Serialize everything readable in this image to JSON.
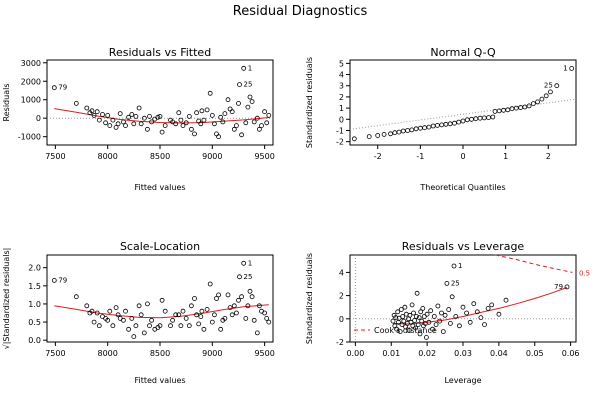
{
  "figure": {
    "title": "Residual Diagnostics"
  },
  "colors": {
    "points": "#000000",
    "smoother": "#e41a1c",
    "reference": "#999999",
    "cooks": "#e41a1c"
  },
  "chart_data": [
    {
      "type": "scatter",
      "title": "Residuals vs Fitted",
      "xlabel": "Fitted values",
      "ylabel": "Residuals",
      "xlim": [
        7420,
        9580
      ],
      "ylim": [
        -1450,
        3150
      ],
      "xticks": [
        7500,
        8000,
        8500,
        9000,
        9500
      ],
      "yticks": [
        -1000,
        0,
        1000,
        2000,
        3000
      ],
      "reference_line": {
        "y": 0,
        "style": "dotted"
      },
      "labeled_points": [
        {
          "label": "1",
          "x": 9300,
          "y": 2700
        },
        {
          "label": "25",
          "x": 9260,
          "y": 1820
        },
        {
          "label": "79",
          "x": 7490,
          "y": 1650
        }
      ],
      "points": [
        [
          7490,
          1650
        ],
        [
          7700,
          800
        ],
        [
          7800,
          550
        ],
        [
          7830,
          300
        ],
        [
          7850,
          400
        ],
        [
          7870,
          150
        ],
        [
          7900,
          350
        ],
        [
          7920,
          -100
        ],
        [
          7950,
          200
        ],
        [
          7980,
          -250
        ],
        [
          8000,
          150
        ],
        [
          8020,
          -400
        ],
        [
          8050,
          -100
        ],
        [
          8080,
          -500
        ],
        [
          8100,
          -300
        ],
        [
          8120,
          250
        ],
        [
          8150,
          -200
        ],
        [
          8170,
          -400
        ],
        [
          8200,
          50
        ],
        [
          8230,
          200
        ],
        [
          8250,
          -300
        ],
        [
          8270,
          100
        ],
        [
          8300,
          550
        ],
        [
          8320,
          -300
        ],
        [
          8350,
          0
        ],
        [
          8380,
          -600
        ],
        [
          8400,
          100
        ],
        [
          8420,
          -200
        ],
        [
          8450,
          -50
        ],
        [
          8480,
          50
        ],
        [
          8500,
          100
        ],
        [
          8520,
          -750
        ],
        [
          8550,
          -400
        ],
        [
          8600,
          -100
        ],
        [
          8620,
          -200
        ],
        [
          8650,
          -300
        ],
        [
          8680,
          300
        ],
        [
          8700,
          -100
        ],
        [
          8720,
          -400
        ],
        [
          8750,
          -250
        ],
        [
          8780,
          100
        ],
        [
          8800,
          -600
        ],
        [
          8830,
          -850
        ],
        [
          8850,
          300
        ],
        [
          8870,
          -150
        ],
        [
          8890,
          -300
        ],
        [
          8900,
          400
        ],
        [
          8920,
          -100
        ],
        [
          8950,
          450
        ],
        [
          8980,
          1350
        ],
        [
          9000,
          150
        ],
        [
          9020,
          -300
        ],
        [
          9040,
          -850
        ],
        [
          9060,
          -1000
        ],
        [
          9080,
          50
        ],
        [
          9100,
          -200
        ],
        [
          9120,
          250
        ],
        [
          9150,
          1000
        ],
        [
          9170,
          500
        ],
        [
          9190,
          350
        ],
        [
          9210,
          -600
        ],
        [
          9230,
          -400
        ],
        [
          9250,
          800
        ],
        [
          9260,
          1820
        ],
        [
          9280,
          -900
        ],
        [
          9300,
          2700
        ],
        [
          9320,
          -250
        ],
        [
          9340,
          600
        ],
        [
          9360,
          1150
        ],
        [
          9380,
          900
        ],
        [
          9400,
          -200
        ],
        [
          9430,
          0
        ],
        [
          9450,
          -600
        ],
        [
          9470,
          -400
        ],
        [
          9500,
          350
        ],
        [
          9520,
          -250
        ],
        [
          9540,
          150
        ]
      ],
      "smoother": [
        [
          7490,
          520
        ],
        [
          7700,
          320
        ],
        [
          7900,
          120
        ],
        [
          8100,
          -60
        ],
        [
          8300,
          -170
        ],
        [
          8500,
          -230
        ],
        [
          8700,
          -260
        ],
        [
          8900,
          -240
        ],
        [
          9100,
          -170
        ],
        [
          9300,
          -90
        ],
        [
          9540,
          40
        ]
      ]
    },
    {
      "type": "scatter",
      "title": "Normal Q-Q",
      "xlabel": "Theoretical Quantiles",
      "ylabel": "Standardized residuals",
      "xlim": [
        -2.65,
        2.65
      ],
      "ylim": [
        -2.3,
        5.3
      ],
      "xticks": [
        -2,
        -1,
        0,
        1,
        2
      ],
      "yticks": [
        -2,
        -1,
        0,
        1,
        2,
        3,
        4,
        5
      ],
      "reference_line": {
        "from": [
          -2.65,
          -0.9
        ],
        "to": [
          2.65,
          1.8
        ],
        "style": "dotted"
      },
      "labeled_points": [
        {
          "label": "1",
          "x": 2.55,
          "y": 4.55
        },
        {
          "label": "25",
          "x": 2.2,
          "y": 3.0
        }
      ],
      "points": [
        [
          -2.55,
          -1.75
        ],
        [
          -2.2,
          -1.55
        ],
        [
          -2.0,
          -1.45
        ],
        [
          -1.85,
          -1.35
        ],
        [
          -1.7,
          -1.3
        ],
        [
          -1.6,
          -1.2
        ],
        [
          -1.5,
          -1.15
        ],
        [
          -1.4,
          -1.05
        ],
        [
          -1.3,
          -1.0
        ],
        [
          -1.2,
          -0.95
        ],
        [
          -1.1,
          -0.85
        ],
        [
          -1.0,
          -0.8
        ],
        [
          -0.9,
          -0.75
        ],
        [
          -0.8,
          -0.7
        ],
        [
          -0.7,
          -0.6
        ],
        [
          -0.6,
          -0.55
        ],
        [
          -0.5,
          -0.5
        ],
        [
          -0.4,
          -0.45
        ],
        [
          -0.3,
          -0.4
        ],
        [
          -0.2,
          -0.35
        ],
        [
          -0.1,
          -0.25
        ],
        [
          0.0,
          -0.15
        ],
        [
          0.1,
          -0.05
        ],
        [
          0.2,
          0.0
        ],
        [
          0.3,
          0.05
        ],
        [
          0.4,
          0.1
        ],
        [
          0.5,
          0.12
        ],
        [
          0.6,
          0.15
        ],
        [
          0.7,
          0.2
        ],
        [
          0.75,
          0.7
        ],
        [
          0.85,
          0.75
        ],
        [
          0.95,
          0.8
        ],
        [
          1.05,
          0.85
        ],
        [
          1.15,
          0.95
        ],
        [
          1.25,
          1.0
        ],
        [
          1.35,
          1.05
        ],
        [
          1.45,
          1.1
        ],
        [
          1.55,
          1.2
        ],
        [
          1.65,
          1.4
        ],
        [
          1.75,
          1.55
        ],
        [
          1.85,
          1.8
        ],
        [
          1.95,
          2.1
        ],
        [
          2.05,
          2.45
        ],
        [
          2.2,
          3.0
        ],
        [
          2.55,
          4.55
        ]
      ]
    },
    {
      "type": "scatter",
      "title": "Scale-Location",
      "xlabel": "Fitted values",
      "ylabel": "√|Standardized residuals|",
      "xlim": [
        7420,
        9580
      ],
      "ylim": [
        -0.05,
        2.35
      ],
      "xticks": [
        7500,
        8000,
        8500,
        9000,
        9500
      ],
      "yticks": [
        0.0,
        0.5,
        1.0,
        1.5,
        2.0
      ],
      "labeled_points": [
        {
          "label": "1",
          "x": 9300,
          "y": 2.12
        },
        {
          "label": "25",
          "x": 9260,
          "y": 1.75
        },
        {
          "label": "79",
          "x": 7490,
          "y": 1.65
        }
      ],
      "points": [
        [
          7490,
          1.65
        ],
        [
          7700,
          1.2
        ],
        [
          7800,
          0.95
        ],
        [
          7830,
          0.75
        ],
        [
          7850,
          0.8
        ],
        [
          7870,
          0.5
        ],
        [
          7900,
          0.75
        ],
        [
          7920,
          0.4
        ],
        [
          7950,
          0.65
        ],
        [
          7980,
          0.6
        ],
        [
          8000,
          0.55
        ],
        [
          8020,
          0.8
        ],
        [
          8050,
          0.4
        ],
        [
          8080,
          0.9
        ],
        [
          8100,
          0.7
        ],
        [
          8120,
          0.6
        ],
        [
          8150,
          0.55
        ],
        [
          8170,
          0.8
        ],
        [
          8200,
          0.3
        ],
        [
          8230,
          0.6
        ],
        [
          8250,
          0.1
        ],
        [
          8270,
          0.4
        ],
        [
          8300,
          0.95
        ],
        [
          8320,
          0.7
        ],
        [
          8350,
          0.2
        ],
        [
          8380,
          1.0
        ],
        [
          8400,
          0.4
        ],
        [
          8420,
          0.55
        ],
        [
          8450,
          0.3
        ],
        [
          8480,
          0.35
        ],
        [
          8500,
          0.4
        ],
        [
          8520,
          1.1
        ],
        [
          8550,
          0.8
        ],
        [
          8600,
          0.4
        ],
        [
          8620,
          0.55
        ],
        [
          8650,
          0.7
        ],
        [
          8680,
          0.7
        ],
        [
          8700,
          0.4
        ],
        [
          8720,
          0.8
        ],
        [
          8750,
          0.6
        ],
        [
          8780,
          0.4
        ],
        [
          8800,
          0.95
        ],
        [
          8830,
          1.15
        ],
        [
          8850,
          0.7
        ],
        [
          8870,
          0.45
        ],
        [
          8890,
          0.65
        ],
        [
          8900,
          0.8
        ],
        [
          8920,
          0.3
        ],
        [
          8950,
          0.85
        ],
        [
          8980,
          1.55
        ],
        [
          9000,
          0.5
        ],
        [
          9020,
          0.7
        ],
        [
          9040,
          1.15
        ],
        [
          9060,
          1.25
        ],
        [
          9080,
          0.3
        ],
        [
          9100,
          0.55
        ],
        [
          9120,
          0.6
        ],
        [
          9150,
          1.25
        ],
        [
          9170,
          0.9
        ],
        [
          9190,
          0.7
        ],
        [
          9210,
          0.95
        ],
        [
          9230,
          0.75
        ],
        [
          9250,
          1.1
        ],
        [
          9260,
          1.75
        ],
        [
          9280,
          1.2
        ],
        [
          9300,
          2.12
        ],
        [
          9320,
          0.6
        ],
        [
          9340,
          0.95
        ],
        [
          9360,
          1.35
        ],
        [
          9380,
          1.2
        ],
        [
          9400,
          0.55
        ],
        [
          9430,
          0.2
        ],
        [
          9450,
          0.95
        ],
        [
          9470,
          0.8
        ],
        [
          9500,
          0.75
        ],
        [
          9520,
          0.6
        ],
        [
          9540,
          0.5
        ]
      ],
      "smoother": [
        [
          7490,
          0.95
        ],
        [
          7700,
          0.85
        ],
        [
          7900,
          0.75
        ],
        [
          8100,
          0.68
        ],
        [
          8300,
          0.63
        ],
        [
          8500,
          0.62
        ],
        [
          8700,
          0.66
        ],
        [
          8900,
          0.74
        ],
        [
          9100,
          0.84
        ],
        [
          9300,
          0.92
        ],
        [
          9540,
          0.98
        ]
      ]
    },
    {
      "type": "scatter",
      "title": "Residuals vs Leverage",
      "xlabel": "Leverage",
      "ylabel": "Standardized residuals",
      "xlim": [
        -0.0015,
        0.0615
      ],
      "ylim": [
        -2.0,
        5.5
      ],
      "xticks": [
        0.0,
        0.01,
        0.02,
        0.03,
        0.04,
        0.05,
        0.06
      ],
      "yticks": [
        -2,
        0,
        2,
        4
      ],
      "reference_lines": [
        {
          "y": 0,
          "style": "dotted"
        },
        {
          "x": 0,
          "style": "dotted"
        }
      ],
      "labeled_points": [
        {
          "label": "1",
          "x": 0.0275,
          "y": 4.55
        },
        {
          "label": "25",
          "x": 0.0255,
          "y": 3.05
        },
        {
          "label": "79",
          "x": 0.059,
          "y": 2.75
        }
      ],
      "legend": {
        "label": "Cook's distance",
        "placement": "bottom-left"
      },
      "cooks_contour_label": "0.5",
      "cooks_contour": [
        [
          0.039,
          5.5
        ],
        [
          0.045,
          5.1
        ],
        [
          0.05,
          4.7
        ],
        [
          0.055,
          4.35
        ],
        [
          0.0605,
          4.0
        ]
      ],
      "points": [
        [
          0.0105,
          -0.2
        ],
        [
          0.0108,
          0.3
        ],
        [
          0.011,
          -0.6
        ],
        [
          0.0112,
          0.1
        ],
        [
          0.0115,
          -0.9
        ],
        [
          0.0118,
          0.6
        ],
        [
          0.012,
          -0.3
        ],
        [
          0.0122,
          0.05
        ],
        [
          0.0125,
          -1.1
        ],
        [
          0.0128,
          0.8
        ],
        [
          0.013,
          -0.5
        ],
        [
          0.0132,
          0.2
        ],
        [
          0.0135,
          -0.2
        ],
        [
          0.0138,
          1.0
        ],
        [
          0.014,
          -0.7
        ],
        [
          0.0142,
          0.4
        ],
        [
          0.0145,
          -0.4
        ],
        [
          0.0148,
          0.0
        ],
        [
          0.015,
          -1.0
        ],
        [
          0.0152,
          0.3
        ],
        [
          0.0155,
          -0.3
        ],
        [
          0.0158,
          1.2
        ],
        [
          0.016,
          -0.6
        ],
        [
          0.0162,
          0.5
        ],
        [
          0.0165,
          -0.15
        ],
        [
          0.0168,
          -0.8
        ],
        [
          0.017,
          0.2
        ],
        [
          0.0172,
          2.2
        ],
        [
          0.0175,
          -0.5
        ],
        [
          0.0178,
          0.1
        ],
        [
          0.018,
          -1.3
        ],
        [
          0.0182,
          0.6
        ],
        [
          0.0185,
          -0.2
        ],
        [
          0.0188,
          0.9
        ],
        [
          0.019,
          -0.6
        ],
        [
          0.0192,
          0.2
        ],
        [
          0.0195,
          -0.4
        ],
        [
          0.0198,
          -1.6
        ],
        [
          0.02,
          0.4
        ],
        [
          0.0205,
          -0.3
        ],
        [
          0.021,
          0.7
        ],
        [
          0.0215,
          -0.9
        ],
        [
          0.022,
          0.2
        ],
        [
          0.0225,
          -0.5
        ],
        [
          0.023,
          1.1
        ],
        [
          0.0235,
          -0.2
        ],
        [
          0.024,
          0.5
        ],
        [
          0.0245,
          -1.1
        ],
        [
          0.025,
          0.3
        ],
        [
          0.0255,
          3.05
        ],
        [
          0.026,
          0.8
        ],
        [
          0.0265,
          -0.4
        ],
        [
          0.027,
          1.9
        ],
        [
          0.0275,
          4.55
        ],
        [
          0.028,
          0.2
        ],
        [
          0.029,
          -0.6
        ],
        [
          0.03,
          1.0
        ],
        [
          0.031,
          0.5
        ],
        [
          0.032,
          -0.3
        ],
        [
          0.033,
          1.3
        ],
        [
          0.034,
          0.6
        ],
        [
          0.035,
          0.1
        ],
        [
          0.036,
          -0.5
        ],
        [
          0.037,
          0.9
        ],
        [
          0.038,
          1.2
        ],
        [
          0.04,
          0.4
        ],
        [
          0.042,
          1.6
        ],
        [
          0.059,
          2.75
        ]
      ],
      "smoother": [
        [
          0.0105,
          -0.4
        ],
        [
          0.015,
          -0.45
        ],
        [
          0.02,
          -0.3
        ],
        [
          0.025,
          -0.1
        ],
        [
          0.03,
          0.2
        ],
        [
          0.035,
          0.55
        ],
        [
          0.04,
          0.9
        ],
        [
          0.045,
          1.3
        ],
        [
          0.05,
          1.75
        ],
        [
          0.055,
          2.25
        ],
        [
          0.059,
          2.7
        ]
      ]
    }
  ]
}
